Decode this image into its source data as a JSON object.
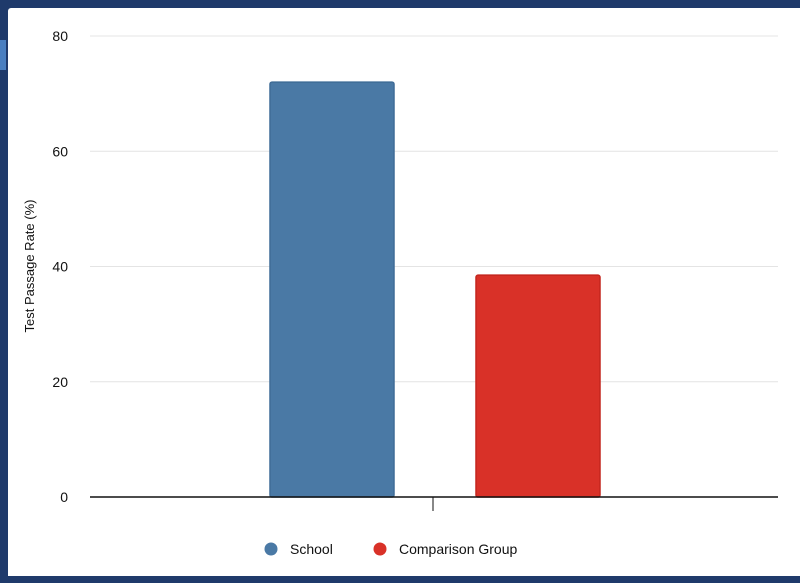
{
  "chart_data": {
    "type": "bar",
    "ylabel": "Test Passage Rate (%)",
    "ylim": [
      0,
      80
    ],
    "yticks": [
      0,
      20,
      40,
      60,
      80
    ],
    "grid": true,
    "legend_position": "bottom",
    "series": [
      {
        "name": "School",
        "values": [
          72
        ],
        "color": "#4a79a5"
      },
      {
        "name": "Comparison Group",
        "values": [
          38.5
        ],
        "color": "#d93128"
      }
    ]
  }
}
